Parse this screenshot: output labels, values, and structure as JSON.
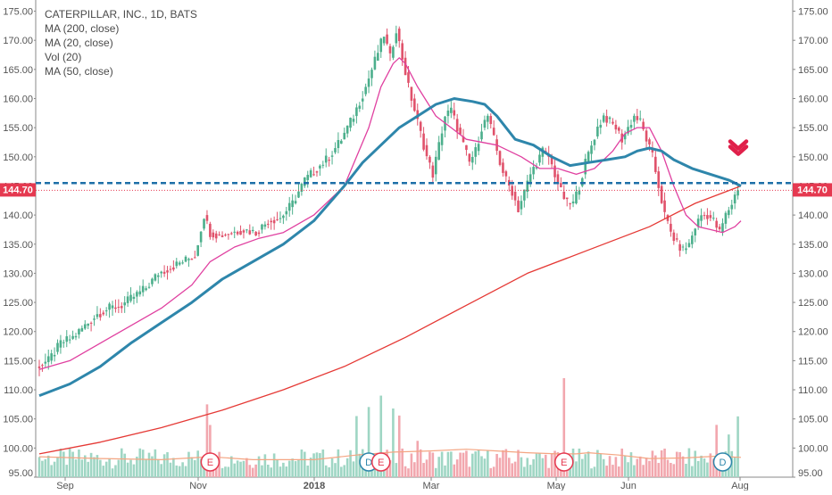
{
  "legend": {
    "title": "CATERPILLAR, INC., 1D, BATS",
    "items": [
      "MA (200, close)",
      "MA (20, close)",
      "Vol (20)",
      "MA (50, close)"
    ]
  },
  "colors": {
    "up": "#4caf8c",
    "down": "#e0526b",
    "vol_up": "#9fd6c4",
    "vol_down": "#f2a7ae",
    "ma200": "#e53935",
    "ma20": "#e040a0",
    "ma50": "#2e86ab",
    "vol_ma": "#f4a582",
    "price_line": "#1e6fa8",
    "dotted": "#e53950",
    "axis_text": "#555555",
    "tag_bg": "#e53950",
    "arrow": "#e0204a"
  },
  "chart_data": {
    "type": "candlestick",
    "title": "CATERPILLAR, INC., 1D, BATS",
    "ylim": [
      95,
      176
    ],
    "y_ticks": [
      "95.00",
      "100.00",
      "105.00",
      "110.00",
      "115.00",
      "120.00",
      "125.00",
      "130.00",
      "135.00",
      "140.00",
      "145.00",
      "150.00",
      "155.00",
      "160.00",
      "165.00",
      "170.00",
      "175.00"
    ],
    "x_ticks": [
      "Sep",
      "Nov",
      "2018",
      "Mar",
      "May",
      "Jun",
      "Aug"
    ],
    "last_price": "144.70",
    "support_level": 145.5,
    "price_path": [
      [
        0,
        114
      ],
      [
        4,
        115
      ],
      [
        8,
        118
      ],
      [
        12,
        119
      ],
      [
        16,
        121
      ],
      [
        20,
        123
      ],
      [
        24,
        124
      ],
      [
        28,
        124.5
      ],
      [
        32,
        126
      ],
      [
        36,
        127.5
      ],
      [
        40,
        130
      ],
      [
        44,
        131
      ],
      [
        48,
        132
      ],
      [
        52,
        133
      ],
      [
        55,
        140
      ],
      [
        57,
        137
      ],
      [
        60,
        136.5
      ],
      [
        64,
        137
      ],
      [
        68,
        137.5
      ],
      [
        72,
        137
      ],
      [
        76,
        139
      ],
      [
        80,
        139.5
      ],
      [
        84,
        142
      ],
      [
        88,
        146
      ],
      [
        92,
        148
      ],
      [
        96,
        150
      ],
      [
        100,
        153
      ],
      [
        104,
        157
      ],
      [
        108,
        162
      ],
      [
        112,
        168
      ],
      [
        114,
        171
      ],
      [
        116,
        167
      ],
      [
        118,
        172
      ],
      [
        120,
        167
      ],
      [
        122,
        162
      ],
      [
        124,
        158
      ],
      [
        126,
        154
      ],
      [
        128,
        150
      ],
      [
        130,
        147
      ],
      [
        132,
        152
      ],
      [
        134,
        157
      ],
      [
        136,
        158
      ],
      [
        138,
        155
      ],
      [
        140,
        152
      ],
      [
        142,
        149
      ],
      [
        144,
        151
      ],
      [
        146,
        155
      ],
      [
        148,
        157
      ],
      [
        150,
        153
      ],
      [
        152,
        149
      ],
      [
        154,
        146
      ],
      [
        156,
        144
      ],
      [
        158,
        141
      ],
      [
        160,
        144
      ],
      [
        162,
        147
      ],
      [
        164,
        149
      ],
      [
        166,
        151
      ],
      [
        168,
        150
      ],
      [
        170,
        147
      ],
      [
        172,
        144
      ],
      [
        174,
        142
      ],
      [
        176,
        142
      ],
      [
        178,
        145
      ],
      [
        180,
        149
      ],
      [
        182,
        152
      ],
      [
        184,
        155
      ],
      [
        186,
        157
      ],
      [
        188,
        156
      ],
      [
        190,
        155
      ],
      [
        192,
        153
      ],
      [
        194,
        155
      ],
      [
        196,
        157
      ],
      [
        198,
        156
      ],
      [
        200,
        153
      ],
      [
        202,
        150
      ],
      [
        204,
        145
      ],
      [
        206,
        140
      ],
      [
        208,
        137
      ],
      [
        210,
        135
      ],
      [
        212,
        134
      ],
      [
        214,
        135
      ],
      [
        216,
        138
      ],
      [
        218,
        140
      ],
      [
        220,
        140
      ],
      [
        222,
        139
      ],
      [
        224,
        137
      ],
      [
        226,
        140
      ],
      [
        228,
        142
      ],
      [
        230,
        144.7
      ]
    ],
    "ma20": [
      [
        0,
        113.5
      ],
      [
        10,
        115
      ],
      [
        20,
        118
      ],
      [
        30,
        121
      ],
      [
        40,
        124
      ],
      [
        50,
        128
      ],
      [
        56,
        132
      ],
      [
        64,
        134.5
      ],
      [
        72,
        136
      ],
      [
        80,
        137
      ],
      [
        90,
        140
      ],
      [
        100,
        145
      ],
      [
        104,
        150
      ],
      [
        108,
        155
      ],
      [
        112,
        162
      ],
      [
        116,
        166
      ],
      [
        118,
        167
      ],
      [
        120,
        166
      ],
      [
        124,
        162
      ],
      [
        130,
        157
      ],
      [
        140,
        153
      ],
      [
        150,
        152
      ],
      [
        158,
        150
      ],
      [
        164,
        148
      ],
      [
        170,
        148
      ],
      [
        176,
        147
      ],
      [
        182,
        148
      ],
      [
        188,
        151
      ],
      [
        192,
        154
      ],
      [
        196,
        155
      ],
      [
        200,
        155
      ],
      [
        204,
        151
      ],
      [
        208,
        145
      ],
      [
        212,
        140
      ],
      [
        216,
        138
      ],
      [
        220,
        137.5
      ],
      [
        224,
        137
      ],
      [
        228,
        138
      ],
      [
        230,
        139
      ]
    ],
    "ma50": [
      [
        0,
        109
      ],
      [
        10,
        111
      ],
      [
        20,
        114
      ],
      [
        30,
        118
      ],
      [
        40,
        121.5
      ],
      [
        50,
        125
      ],
      [
        60,
        129
      ],
      [
        70,
        132
      ],
      [
        80,
        135
      ],
      [
        90,
        139
      ],
      [
        100,
        145
      ],
      [
        106,
        149
      ],
      [
        112,
        152
      ],
      [
        118,
        155
      ],
      [
        124,
        157
      ],
      [
        130,
        159
      ],
      [
        136,
        160
      ],
      [
        142,
        159.5
      ],
      [
        146,
        159
      ],
      [
        150,
        157
      ],
      [
        156,
        153
      ],
      [
        162,
        152
      ],
      [
        168,
        150
      ],
      [
        174,
        148.5
      ],
      [
        180,
        149
      ],
      [
        186,
        149.5
      ],
      [
        192,
        150
      ],
      [
        196,
        151
      ],
      [
        200,
        151.5
      ],
      [
        204,
        151
      ],
      [
        208,
        149.5
      ],
      [
        214,
        148
      ],
      [
        220,
        147
      ],
      [
        226,
        146
      ],
      [
        230,
        145
      ]
    ],
    "ma200": [
      [
        0,
        99
      ],
      [
        20,
        101
      ],
      [
        40,
        103.5
      ],
      [
        60,
        106.5
      ],
      [
        80,
        110
      ],
      [
        100,
        114
      ],
      [
        120,
        119
      ],
      [
        140,
        124.5
      ],
      [
        160,
        130
      ],
      [
        180,
        134
      ],
      [
        200,
        138
      ],
      [
        215,
        142
      ],
      [
        225,
        144
      ],
      [
        230,
        145
      ]
    ],
    "volume_ma": [
      [
        0,
        98.5
      ],
      [
        20,
        98.2
      ],
      [
        40,
        98
      ],
      [
        56,
        98.5
      ],
      [
        70,
        98
      ],
      [
        90,
        98
      ],
      [
        104,
        98.8
      ],
      [
        116,
        99.3
      ],
      [
        128,
        99.5
      ],
      [
        140,
        99.8
      ],
      [
        150,
        99.5
      ],
      [
        160,
        99.2
      ],
      [
        170,
        99
      ],
      [
        176,
        99
      ],
      [
        180,
        99.2
      ],
      [
        190,
        98.8
      ],
      [
        200,
        98.2
      ],
      [
        212,
        98.3
      ],
      [
        222,
        98.6
      ],
      [
        230,
        98.4
      ]
    ],
    "events": [
      {
        "label": "E",
        "t": 56
      },
      {
        "label": "D",
        "t": 108
      },
      {
        "label": "E",
        "t": 112
      },
      {
        "label": "E",
        "t": 172
      },
      {
        "label": "D",
        "t": 224
      }
    ]
  }
}
